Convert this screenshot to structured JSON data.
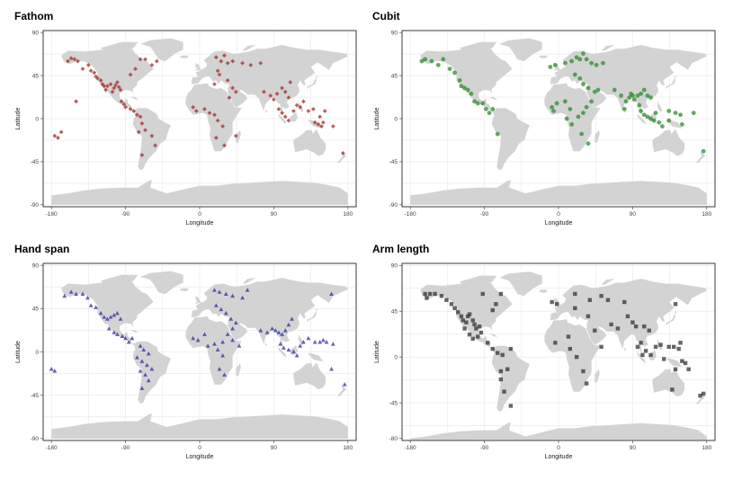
{
  "figure": {
    "colors": {
      "land": "#d3d3d3",
      "grid": "#e6e6e6",
      "frame": "#333333"
    }
  },
  "chart_data": [
    {
      "type": "scatter",
      "title": "Fathom",
      "xlabel": "Longitude",
      "ylabel": "Latitude",
      "xlim": [
        -190,
        190
      ],
      "ylim": [
        -92,
        92
      ],
      "xticks": [
        "-180",
        "-90",
        "0",
        "90",
        "180"
      ],
      "yticks": [
        "90",
        "45",
        "0",
        "-45",
        "-90"
      ],
      "grid": true,
      "marker": "diamond",
      "color": "#a52a2a",
      "points": [
        [
          -160,
          60
        ],
        [
          -156,
          63
        ],
        [
          -152,
          62
        ],
        [
          -148,
          60
        ],
        [
          -150,
          18
        ],
        [
          -142,
          52
        ],
        [
          -135,
          56
        ],
        [
          -132,
          50
        ],
        [
          -128,
          48
        ],
        [
          -126,
          44
        ],
        [
          -124,
          42
        ],
        [
          -120,
          40
        ],
        [
          -118,
          36
        ],
        [
          -116,
          34
        ],
        [
          -114,
          30
        ],
        [
          -112,
          34
        ],
        [
          -108,
          36
        ],
        [
          -106,
          28
        ],
        [
          -104,
          32
        ],
        [
          -102,
          35
        ],
        [
          -100,
          38
        ],
        [
          -98,
          33
        ],
        [
          -96,
          30
        ],
        [
          -95,
          18
        ],
        [
          -92,
          15
        ],
        [
          -90,
          12
        ],
        [
          -84,
          10
        ],
        [
          -80,
          8
        ],
        [
          -76,
          4
        ],
        [
          -72,
          2
        ],
        [
          -84,
          46
        ],
        [
          -78,
          52
        ],
        [
          -72,
          62
        ],
        [
          -66,
          62
        ],
        [
          -58,
          56
        ],
        [
          -52,
          60
        ],
        [
          -70,
          -5
        ],
        [
          -66,
          -12
        ],
        [
          -74,
          -14
        ],
        [
          -58,
          -18
        ],
        [
          -54,
          -28
        ],
        [
          -70,
          -38
        ],
        [
          -176,
          -18
        ],
        [
          -172,
          -20
        ],
        [
          -168,
          -14
        ],
        [
          20,
          64
        ],
        [
          26,
          60
        ],
        [
          30,
          66
        ],
        [
          34,
          58
        ],
        [
          40,
          60
        ],
        [
          52,
          58
        ],
        [
          62,
          56
        ],
        [
          74,
          58
        ],
        [
          22,
          50
        ],
        [
          24,
          46
        ],
        [
          18,
          36
        ],
        [
          34,
          40
        ],
        [
          40,
          32
        ],
        [
          44,
          28
        ],
        [
          36,
          22
        ],
        [
          -8,
          12
        ],
        [
          -4,
          8
        ],
        [
          6,
          10
        ],
        [
          12,
          6
        ],
        [
          18,
          4
        ],
        [
          22,
          -2
        ],
        [
          28,
          -8
        ],
        [
          20,
          -20
        ],
        [
          30,
          -28
        ],
        [
          44,
          -18
        ],
        [
          78,
          28
        ],
        [
          86,
          24
        ],
        [
          90,
          20
        ],
        [
          94,
          26
        ],
        [
          100,
          32
        ],
        [
          104,
          28
        ],
        [
          108,
          22
        ],
        [
          110,
          38
        ],
        [
          96,
          10
        ],
        [
          100,
          6
        ],
        [
          104,
          2
        ],
        [
          108,
          -2
        ],
        [
          114,
          8
        ],
        [
          118,
          14
        ],
        [
          122,
          12
        ],
        [
          126,
          18
        ],
        [
          132,
          8
        ],
        [
          138,
          10
        ],
        [
          140,
          -4
        ],
        [
          144,
          -6
        ],
        [
          148,
          -8
        ],
        [
          150,
          -4
        ],
        [
          146,
          2
        ],
        [
          152,
          8
        ],
        [
          162,
          -8
        ],
        [
          174,
          -36
        ]
      ]
    },
    {
      "type": "scatter",
      "title": "Cubit",
      "xlabel": "Longitude",
      "ylabel": "Latitude",
      "xlim": [
        -190,
        190
      ],
      "ylim": [
        -92,
        92
      ],
      "xticks": [
        "-180",
        "-90",
        "0",
        "90",
        "180"
      ],
      "yticks": [
        "90",
        "45",
        "0",
        "-45",
        "-90"
      ],
      "grid": true,
      "marker": "circle",
      "color": "#2e8b2e",
      "points": [
        [
          -166,
          60
        ],
        [
          -162,
          62
        ],
        [
          -154,
          60
        ],
        [
          -146,
          56
        ],
        [
          -140,
          62
        ],
        [
          -132,
          52
        ],
        [
          -126,
          48
        ],
        [
          -120,
          40
        ],
        [
          -118,
          34
        ],
        [
          -114,
          32
        ],
        [
          -110,
          30
        ],
        [
          -106,
          26
        ],
        [
          -102,
          18
        ],
        [
          -98,
          16
        ],
        [
          -92,
          16
        ],
        [
          -88,
          10
        ],
        [
          -84,
          6
        ],
        [
          -74,
          -16
        ],
        [
          -80,
          10
        ],
        [
          -10,
          54
        ],
        [
          -4,
          56
        ],
        [
          8,
          58
        ],
        [
          16,
          60
        ],
        [
          22,
          64
        ],
        [
          26,
          62
        ],
        [
          30,
          68
        ],
        [
          34,
          62
        ],
        [
          40,
          58
        ],
        [
          46,
          56
        ],
        [
          54,
          58
        ],
        [
          20,
          46
        ],
        [
          26,
          42
        ],
        [
          30,
          36
        ],
        [
          36,
          32
        ],
        [
          44,
          28
        ],
        [
          48,
          30
        ],
        [
          40,
          18
        ],
        [
          34,
          12
        ],
        [
          30,
          6
        ],
        [
          24,
          2
        ],
        [
          14,
          10
        ],
        [
          8,
          18
        ],
        [
          -2,
          16
        ],
        [
          -8,
          12
        ],
        [
          -6,
          8
        ],
        [
          10,
          0
        ],
        [
          16,
          -6
        ],
        [
          28,
          -16
        ],
        [
          36,
          -26
        ],
        [
          68,
          30
        ],
        [
          76,
          24
        ],
        [
          82,
          18
        ],
        [
          86,
          22
        ],
        [
          88,
          26
        ],
        [
          90,
          24
        ],
        [
          92,
          20
        ],
        [
          96,
          24
        ],
        [
          100,
          26
        ],
        [
          104,
          30
        ],
        [
          108,
          24
        ],
        [
          112,
          22
        ],
        [
          98,
          14
        ],
        [
          100,
          8
        ],
        [
          104,
          4
        ],
        [
          108,
          2
        ],
        [
          112,
          0
        ],
        [
          116,
          -2
        ],
        [
          122,
          -4
        ],
        [
          126,
          -8
        ],
        [
          118,
          6
        ],
        [
          80,
          10
        ],
        [
          134,
          8
        ],
        [
          142,
          6
        ],
        [
          148,
          4
        ],
        [
          164,
          6
        ],
        [
          134,
          -2
        ],
        [
          150,
          -6
        ],
        [
          176,
          -34
        ]
      ]
    },
    {
      "type": "scatter",
      "title": "Hand span",
      "xlabel": "Longitude",
      "ylabel": "Latitude",
      "xlim": [
        -190,
        190
      ],
      "ylim": [
        -92,
        92
      ],
      "xticks": [
        "-180",
        "-90",
        "0",
        "90",
        "180"
      ],
      "yticks": [
        "90",
        "45",
        "0",
        "-45",
        "-90"
      ],
      "grid": true,
      "marker": "triangle",
      "color": "#2f2fa0",
      "points": [
        [
          -164,
          58
        ],
        [
          -156,
          62
        ],
        [
          -150,
          60
        ],
        [
          -142,
          60
        ],
        [
          -136,
          56
        ],
        [
          -132,
          48
        ],
        [
          -126,
          46
        ],
        [
          -120,
          40
        ],
        [
          -116,
          36
        ],
        [
          -112,
          34
        ],
        [
          -108,
          36
        ],
        [
          -104,
          38
        ],
        [
          -100,
          40
        ],
        [
          -96,
          34
        ],
        [
          -104,
          20
        ],
        [
          -100,
          18
        ],
        [
          -94,
          16
        ],
        [
          -90,
          14
        ],
        [
          -86,
          10
        ],
        [
          -82,
          14
        ],
        [
          -110,
          24
        ],
        [
          -72,
          6
        ],
        [
          -68,
          2
        ],
        [
          -62,
          -2
        ],
        [
          -76,
          -6
        ],
        [
          -70,
          -10
        ],
        [
          -64,
          -14
        ],
        [
          -58,
          -18
        ],
        [
          -66,
          -24
        ],
        [
          -62,
          -30
        ],
        [
          -70,
          -38
        ],
        [
          -72,
          -20
        ],
        [
          -180,
          -18
        ],
        [
          -176,
          -20
        ],
        [
          18,
          64
        ],
        [
          24,
          62
        ],
        [
          32,
          60
        ],
        [
          40,
          58
        ],
        [
          52,
          56
        ],
        [
          58,
          64
        ],
        [
          20,
          48
        ],
        [
          26,
          44
        ],
        [
          32,
          40
        ],
        [
          38,
          34
        ],
        [
          44,
          30
        ],
        [
          40,
          24
        ],
        [
          34,
          18
        ],
        [
          28,
          10
        ],
        [
          18,
          8
        ],
        [
          10,
          6
        ],
        [
          -2,
          12
        ],
        [
          -8,
          14
        ],
        [
          6,
          18
        ],
        [
          22,
          2
        ],
        [
          28,
          -4
        ],
        [
          24,
          -18
        ],
        [
          30,
          -24
        ],
        [
          40,
          12
        ],
        [
          48,
          6
        ],
        [
          74,
          22
        ],
        [
          82,
          20
        ],
        [
          88,
          24
        ],
        [
          92,
          22
        ],
        [
          96,
          20
        ],
        [
          100,
          18
        ],
        [
          104,
          22
        ],
        [
          108,
          28
        ],
        [
          112,
          34
        ],
        [
          98,
          8
        ],
        [
          102,
          4
        ],
        [
          108,
          2
        ],
        [
          114,
          0
        ],
        [
          118,
          -4
        ],
        [
          122,
          6
        ],
        [
          126,
          10
        ],
        [
          132,
          14
        ],
        [
          140,
          10
        ],
        [
          146,
          10
        ],
        [
          150,
          12
        ],
        [
          154,
          10
        ],
        [
          162,
          8
        ],
        [
          160,
          -18
        ],
        [
          176,
          -34
        ],
        [
          160,
          60
        ]
      ]
    },
    {
      "type": "scatter",
      "title": "Arm length",
      "xlabel": "Longitude",
      "ylabel": "Latitude",
      "xlim": [
        -190,
        190
      ],
      "ylim": [
        -82,
        92
      ],
      "xticks": [
        "-180",
        "-90",
        "0",
        "90",
        "180"
      ],
      "yticks": [
        "90",
        "45",
        "0",
        "-45",
        "-80"
      ],
      "grid": true,
      "marker": "square",
      "color": "#333333",
      "points": [
        [
          -162,
          62
        ],
        [
          -160,
          58
        ],
        [
          -156,
          62
        ],
        [
          -150,
          62
        ],
        [
          -142,
          60
        ],
        [
          -136,
          56
        ],
        [
          -130,
          52
        ],
        [
          -126,
          48
        ],
        [
          -122,
          44
        ],
        [
          -118,
          40
        ],
        [
          -116,
          36
        ],
        [
          -112,
          34
        ],
        [
          -110,
          40
        ],
        [
          -108,
          42
        ],
        [
          -104,
          36
        ],
        [
          -102,
          32
        ],
        [
          -100,
          28
        ],
        [
          -96,
          30
        ],
        [
          -114,
          28
        ],
        [
          -108,
          22
        ],
        [
          -104,
          18
        ],
        [
          -98,
          20
        ],
        [
          -94,
          24
        ],
        [
          -86,
          14
        ],
        [
          -80,
          46
        ],
        [
          -76,
          52
        ],
        [
          -70,
          62
        ],
        [
          -92,
          62
        ],
        [
          -80,
          8
        ],
        [
          -74,
          4
        ],
        [
          -68,
          2
        ],
        [
          -58,
          8
        ],
        [
          -62,
          -12
        ],
        [
          -70,
          -14
        ],
        [
          -66,
          -34
        ],
        [
          -58,
          -48
        ],
        [
          -70,
          -22
        ],
        [
          -8,
          54
        ],
        [
          -2,
          52
        ],
        [
          20,
          62
        ],
        [
          38,
          56
        ],
        [
          52,
          60
        ],
        [
          60,
          56
        ],
        [
          80,
          54
        ],
        [
          20,
          48
        ],
        [
          36,
          40
        ],
        [
          44,
          26
        ],
        [
          12,
          20
        ],
        [
          -4,
          14
        ],
        [
          14,
          8
        ],
        [
          22,
          0
        ],
        [
          30,
          -14
        ],
        [
          34,
          -26
        ],
        [
          52,
          10
        ],
        [
          64,
          32
        ],
        [
          72,
          28
        ],
        [
          84,
          40
        ],
        [
          90,
          34
        ],
        [
          94,
          30
        ],
        [
          104,
          30
        ],
        [
          110,
          26
        ],
        [
          100,
          14
        ],
        [
          96,
          10
        ],
        [
          102,
          2
        ],
        [
          106,
          6
        ],
        [
          112,
          2
        ],
        [
          118,
          10
        ],
        [
          124,
          12
        ],
        [
          128,
          -2
        ],
        [
          134,
          10
        ],
        [
          140,
          10
        ],
        [
          146,
          8
        ],
        [
          148,
          14
        ],
        [
          150,
          -4
        ],
        [
          154,
          -6
        ],
        [
          158,
          -12
        ],
        [
          142,
          -12
        ],
        [
          138,
          -32
        ],
        [
          172,
          -38
        ],
        [
          176,
          -36
        ],
        [
          142,
          52
        ]
      ]
    }
  ]
}
